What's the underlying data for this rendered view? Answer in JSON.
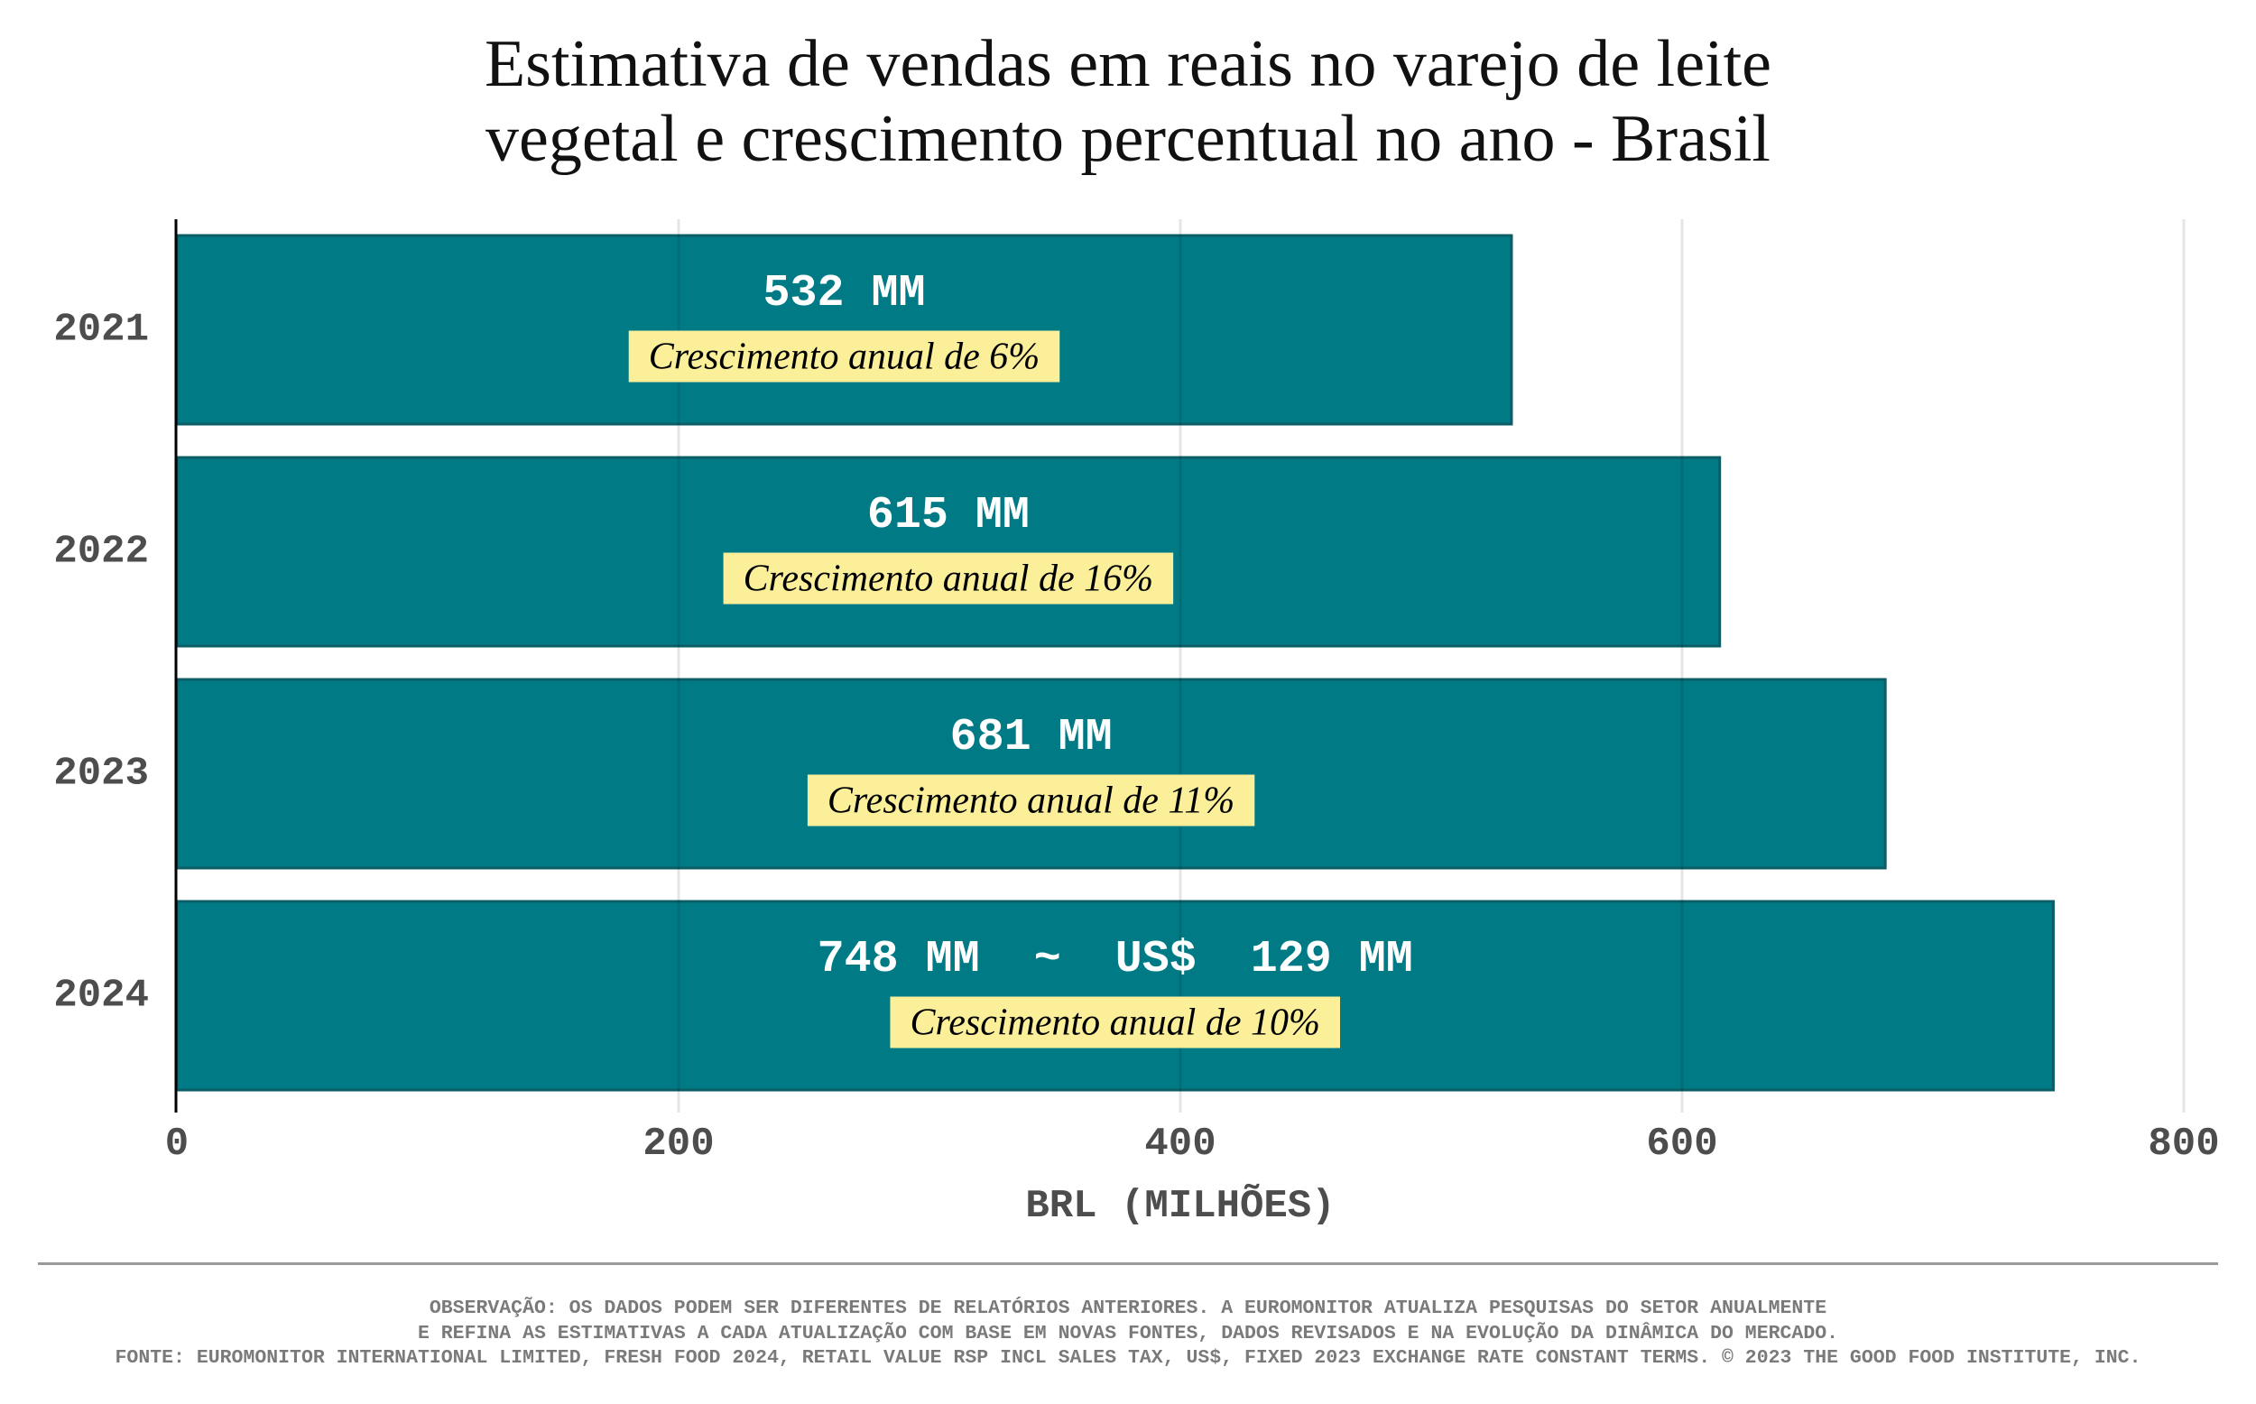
{
  "title": {
    "line1": "Estimativa de vendas em reais no varejo de leite",
    "line2": "vegetal e crescimento percentual no ano - Brasil"
  },
  "colors": {
    "bar_fill": "#007b85",
    "bar_edge": "#0b5e66",
    "label_box": "#fbef9a",
    "grid": "#e4e4e4",
    "tick_text": "#4d4d4d",
    "note_text": "#7a7a7a"
  },
  "chart_data": {
    "type": "bar",
    "orientation": "horizontal",
    "title": "Estimativa de vendas em reais no varejo de leite vegetal e crescimento percentual no ano - Brasil",
    "categories": [
      "2021",
      "2022",
      "2023",
      "2024"
    ],
    "values": [
      532,
      615,
      681,
      748
    ],
    "value_labels": [
      "532 MM",
      "615 MM",
      "681 MM",
      "748 MM  ~  US$  129 MM"
    ],
    "growth_labels": [
      "Crescimento anual de 6%",
      "Crescimento anual de 16%",
      "Crescimento anual de 11%",
      "Crescimento anual de 10%"
    ],
    "growth_pct": [
      6,
      16,
      11,
      10
    ],
    "xlabel": "BRL (MILHÕES)",
    "ylabel": "",
    "xlim": [
      0,
      800
    ],
    "xticks": [
      0,
      200,
      400,
      600,
      800
    ],
    "xtick_labels": [
      "0",
      "200",
      "400",
      "600",
      "800"
    ],
    "grid": "vertical",
    "legend": "none"
  },
  "notes": {
    "line1": "OBSERVAÇÃO: OS DADOS PODEM SER DIFERENTES DE RELATÓRIOS ANTERIORES. A EUROMONITOR ATUALIZA PESQUISAS DO SETOR ANUALMENTE",
    "line2": "E REFINA AS ESTIMATIVAS A CADA ATUALIZAÇÃO COM BASE EM NOVAS FONTES, DADOS REVISADOS E NA EVOLUÇÃO DA DINÂMICA DO MERCADO.",
    "line3": "FONTE: EUROMONITOR INTERNATIONAL LIMITED, FRESH FOOD 2024, RETAIL VALUE RSP INCL SALES TAX, US$, FIXED 2023 EXCHANGE RATE CONSTANT TERMS. © 2023 THE GOOD FOOD INSTITUTE, INC."
  }
}
